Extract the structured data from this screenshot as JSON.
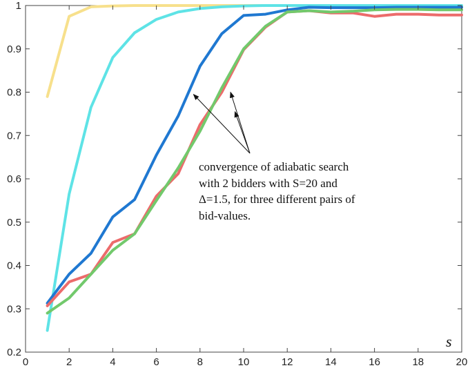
{
  "chart_data": {
    "type": "line",
    "title": "",
    "xlabel": "s",
    "ylabel": "",
    "xlim": [
      0,
      20
    ],
    "ylim": [
      0.2,
      1
    ],
    "xticks": [
      "0",
      "2",
      "4",
      "6",
      "8",
      "10",
      "12",
      "14",
      "16",
      "18",
      "20"
    ],
    "yticks": [
      "0.2",
      "0.3",
      "0.4",
      "0.5",
      "0.6",
      "0.7",
      "0.8",
      "0.9",
      "1"
    ],
    "grid": false,
    "annotation": {
      "lines": [
        "convergence of adiabatic search",
        "with 2 bidders with S=20 and",
        "Δ=1.5, for three different pairs of",
        "bid-values."
      ],
      "arrow_targets": [
        [
          7.7,
          0.795
        ],
        [
          9.4,
          0.8
        ],
        [
          9.6,
          0.755
        ]
      ]
    },
    "x": [
      1,
      2,
      3,
      4,
      5,
      6,
      7,
      8,
      9,
      10,
      11,
      12,
      13,
      14,
      15,
      16,
      17,
      18,
      19,
      20
    ],
    "series": [
      {
        "color": "#f7e08c",
        "values": [
          0.79,
          0.975,
          0.997,
          0.999,
          1,
          1,
          1,
          1,
          1,
          1,
          1,
          1,
          1,
          1,
          1,
          1,
          1,
          1,
          1,
          1
        ]
      },
      {
        "color": "#5ee3e6",
        "values": [
          0.25,
          0.565,
          0.765,
          0.88,
          0.937,
          0.968,
          0.985,
          0.993,
          0.997,
          0.999,
          1,
          1,
          1,
          1,
          1,
          1,
          1,
          1,
          1,
          1
        ]
      },
      {
        "color": "#1f78d1",
        "values": [
          0.313,
          0.38,
          0.428,
          0.512,
          0.552,
          0.655,
          0.745,
          0.86,
          0.935,
          0.977,
          0.98,
          0.99,
          0.996,
          0.995,
          0.995,
          0.995,
          0.996,
          0.996,
          0.996,
          0.996
        ]
      },
      {
        "color": "#ec6b6b",
        "values": [
          0.307,
          0.362,
          0.38,
          0.453,
          0.473,
          0.56,
          0.612,
          0.725,
          0.8,
          0.898,
          0.95,
          0.985,
          0.988,
          0.983,
          0.983,
          0.975,
          0.98,
          0.98,
          0.978,
          0.978
        ]
      },
      {
        "color": "#72c96c",
        "values": [
          0.29,
          0.325,
          0.38,
          0.435,
          0.473,
          0.55,
          0.625,
          0.71,
          0.81,
          0.9,
          0.952,
          0.985,
          0.988,
          0.985,
          0.987,
          0.99,
          0.991,
          0.991,
          0.99,
          0.99
        ]
      }
    ]
  }
}
